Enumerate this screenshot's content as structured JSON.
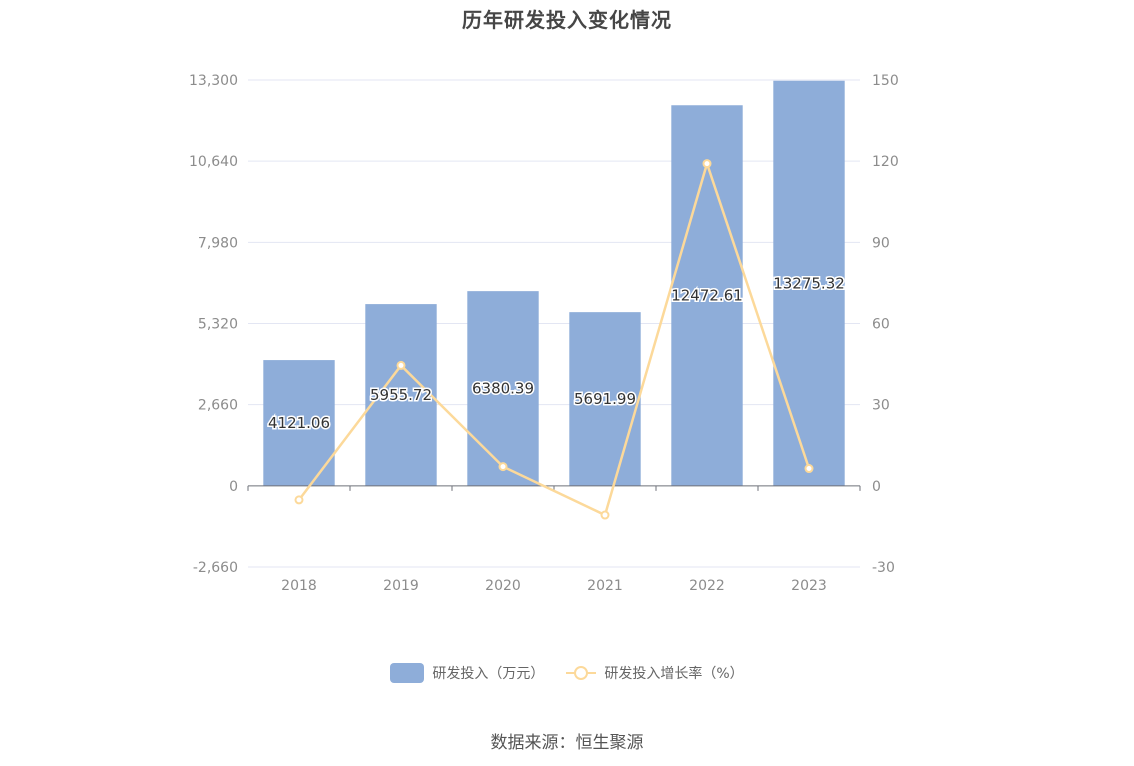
{
  "title": "历年研发投入变化情况",
  "source": "数据来源：恒生聚源",
  "chart_data": {
    "type": "bar",
    "title": "历年研发投入变化情况",
    "categories": [
      "2018",
      "2019",
      "2020",
      "2021",
      "2022",
      "2023"
    ],
    "series": [
      {
        "name": "研发投入（万元）",
        "type": "bar",
        "axis": "left",
        "color": "#8eadd9",
        "values": [
          4121.06,
          5955.72,
          6380.39,
          5691.99,
          12472.61,
          13275.32
        ],
        "labels": [
          "4121.06",
          "5955.72",
          "6380.39",
          "5691.99",
          "12472.61",
          "13275.32"
        ]
      },
      {
        "name": "研发投入增长率（%）",
        "type": "line",
        "axis": "right",
        "color": "#fcd99a",
        "values": [
          -5.2,
          44.5,
          7.1,
          -10.8,
          119.1,
          6.4
        ]
      }
    ],
    "y_left": {
      "min": -2660,
      "max": 13300,
      "ticks": [
        "-2,660",
        "0",
        "2,660",
        "5,320",
        "7,980",
        "10,640",
        "13,300"
      ]
    },
    "y_right": {
      "min": -30,
      "max": 150,
      "ticks": [
        "-30",
        "0",
        "30",
        "60",
        "90",
        "120",
        "150"
      ]
    },
    "grid": true,
    "legend": "bottom-center"
  }
}
